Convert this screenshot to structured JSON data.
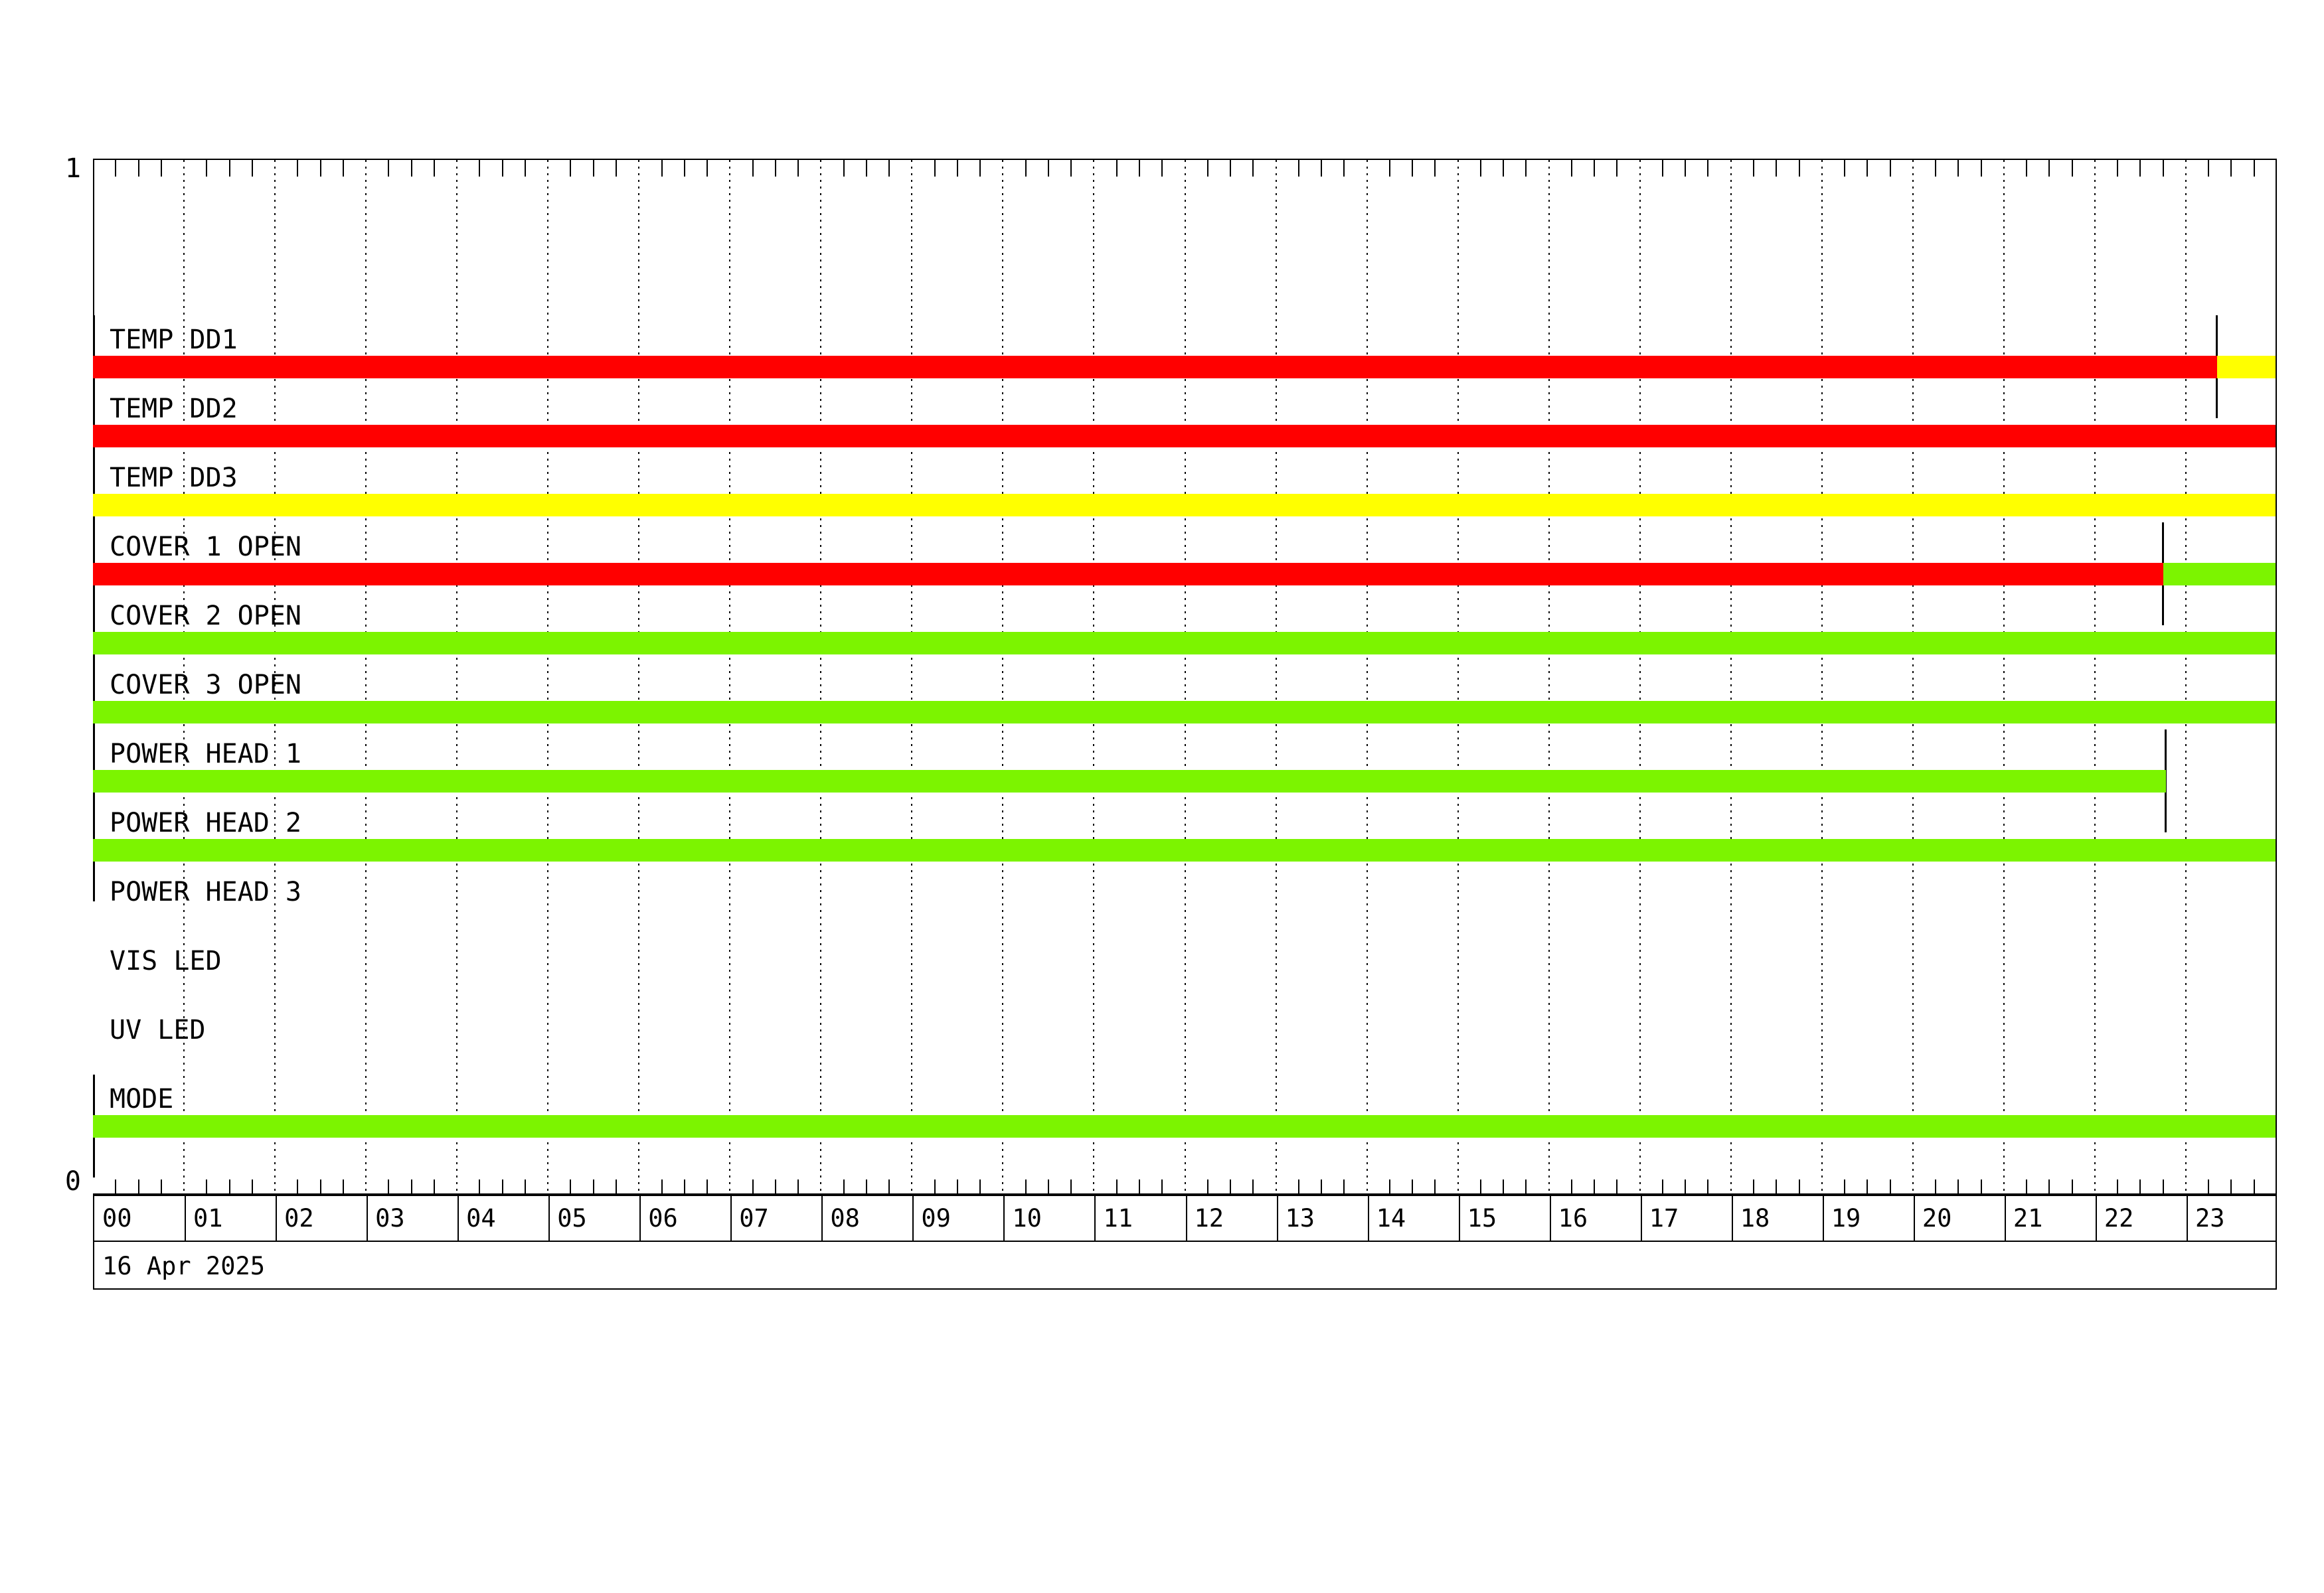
{
  "y_axis": {
    "top_label": "1",
    "bottom_label": "0"
  },
  "x_axis": {
    "hours": [
      "00",
      "01",
      "02",
      "03",
      "04",
      "05",
      "06",
      "07",
      "08",
      "09",
      "10",
      "11",
      "12",
      "13",
      "14",
      "15",
      "16",
      "17",
      "18",
      "19",
      "20",
      "21",
      "22",
      "23"
    ],
    "minor_ticks_per_hour": 4
  },
  "footer": {
    "date_label": "16 Apr 2025"
  },
  "colors": {
    "red": "#FF0000",
    "yellow": "#FFFF00",
    "green": "#7CF400",
    "axis": "#000000",
    "background": "#FFFFFF"
  },
  "chart_data": {
    "type": "timeline",
    "title": "",
    "date": "16 Apr 2025",
    "x_range_hours": [
      0,
      24
    ],
    "y_axis_labels": {
      "top": "1",
      "bottom": "0"
    },
    "grid": "hourly-dashed",
    "rows": [
      {
        "label": "TEMP DD1",
        "segments": [
          {
            "start": 0,
            "end": 23.34,
            "color": "red"
          },
          {
            "start": 23.34,
            "end": 24,
            "color": "yellow"
          }
        ],
        "markers": [
          0,
          23.34
        ]
      },
      {
        "label": "TEMP DD2",
        "segments": [
          {
            "start": 0,
            "end": 24,
            "color": "red"
          }
        ],
        "markers": [
          0
        ]
      },
      {
        "label": "TEMP DD3",
        "segments": [
          {
            "start": 0,
            "end": 24,
            "color": "yellow"
          }
        ],
        "markers": [
          0
        ]
      },
      {
        "label": "COVER 1 OPEN",
        "segments": [
          {
            "start": 0,
            "end": 22.75,
            "color": "red"
          },
          {
            "start": 22.75,
            "end": 24,
            "color": "green"
          }
        ],
        "markers": [
          0,
          22.75
        ]
      },
      {
        "label": "COVER 2 OPEN",
        "segments": [
          {
            "start": 0,
            "end": 24,
            "color": "green"
          }
        ],
        "markers": [
          0
        ]
      },
      {
        "label": "COVER 3 OPEN",
        "segments": [
          {
            "start": 0,
            "end": 24,
            "color": "green"
          }
        ],
        "markers": [
          0
        ]
      },
      {
        "label": "POWER HEAD 1",
        "segments": [
          {
            "start": 0,
            "end": 22.78,
            "color": "green"
          }
        ],
        "markers": [
          0,
          22.78
        ]
      },
      {
        "label": "POWER HEAD 2",
        "segments": [
          {
            "start": 0,
            "end": 24,
            "color": "green"
          }
        ],
        "markers": [
          0
        ]
      },
      {
        "label": "POWER HEAD 3",
        "segments": [],
        "markers": []
      },
      {
        "label": "VIS LED",
        "segments": [],
        "markers": []
      },
      {
        "label": "UV LED",
        "segments": [],
        "markers": []
      },
      {
        "label": "MODE",
        "segments": [
          {
            "start": 0,
            "end": 24,
            "color": "green"
          }
        ],
        "markers": [
          0
        ]
      }
    ]
  }
}
